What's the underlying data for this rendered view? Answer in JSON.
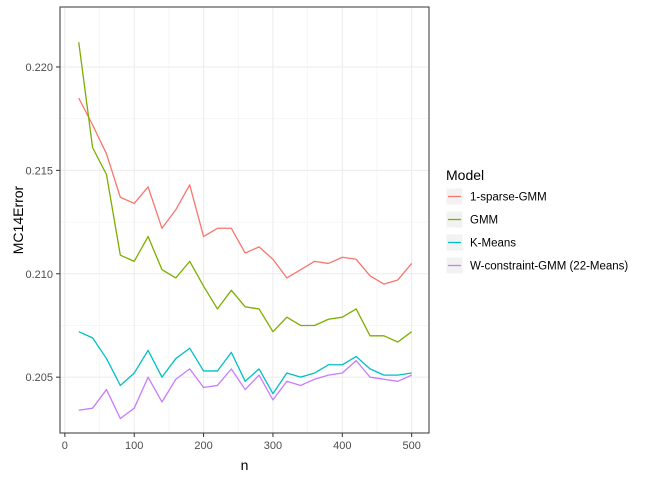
{
  "chart_data": {
    "type": "line",
    "title": "",
    "xlabel": "n",
    "ylabel": "MC14Error",
    "xlim": [
      -7,
      525
    ],
    "ylim": [
      0.2023,
      0.2229
    ],
    "x_ticks": [
      0,
      100,
      200,
      300,
      400,
      500
    ],
    "y_ticks": [
      0.205,
      0.21,
      0.215,
      0.22
    ],
    "y_tick_labels": [
      "0.205",
      "0.210",
      "0.215",
      "0.220"
    ],
    "grid": true,
    "legend_title": "Model",
    "legend_position": "right",
    "x": [
      20,
      40,
      60,
      80,
      100,
      120,
      140,
      160,
      180,
      200,
      220,
      240,
      260,
      280,
      300,
      320,
      340,
      360,
      380,
      400,
      420,
      440,
      460,
      480,
      500
    ],
    "series": [
      {
        "name": "1-sparse-GMM",
        "color": "#F8766D",
        "values": [
          0.2185,
          0.2172,
          0.2158,
          0.2137,
          0.2134,
          0.2142,
          0.2122,
          0.2131,
          0.2143,
          0.2118,
          0.2122,
          0.2122,
          0.211,
          0.2113,
          0.2107,
          0.2098,
          0.2102,
          0.2106,
          0.2105,
          0.2108,
          0.2107,
          0.2099,
          0.2095,
          0.2097,
          0.2105
        ]
      },
      {
        "name": "GMM",
        "color": "#7CAE00",
        "values": [
          0.2212,
          0.2161,
          0.2148,
          0.2109,
          0.2106,
          0.2118,
          0.2102,
          0.2098,
          0.2106,
          0.2094,
          0.2083,
          0.2092,
          0.2084,
          0.2083,
          0.2072,
          0.2079,
          0.2075,
          0.2075,
          0.2078,
          0.2079,
          0.2083,
          0.207,
          0.207,
          0.2067,
          0.2072
        ]
      },
      {
        "name": "K-Means",
        "color": "#00BFC4",
        "values": [
          0.2072,
          0.2069,
          0.2059,
          0.2046,
          0.2052,
          0.2063,
          0.205,
          0.2059,
          0.2064,
          0.2053,
          0.2053,
          0.2062,
          0.2048,
          0.2054,
          0.2042,
          0.2052,
          0.205,
          0.2052,
          0.2056,
          0.2056,
          0.206,
          0.2054,
          0.2051,
          0.2051,
          0.2052
        ]
      },
      {
        "name": "W-constraint-GMM (22-Means)",
        "color": "#C77CFF",
        "values": [
          0.2034,
          0.2035,
          0.2044,
          0.203,
          0.2035,
          0.205,
          0.2038,
          0.2049,
          0.2054,
          0.2045,
          0.2046,
          0.2054,
          0.2044,
          0.2051,
          0.2039,
          0.2048,
          0.2046,
          0.2049,
          0.2051,
          0.2052,
          0.2058,
          0.205,
          0.2049,
          0.2048,
          0.2051
        ]
      }
    ]
  }
}
